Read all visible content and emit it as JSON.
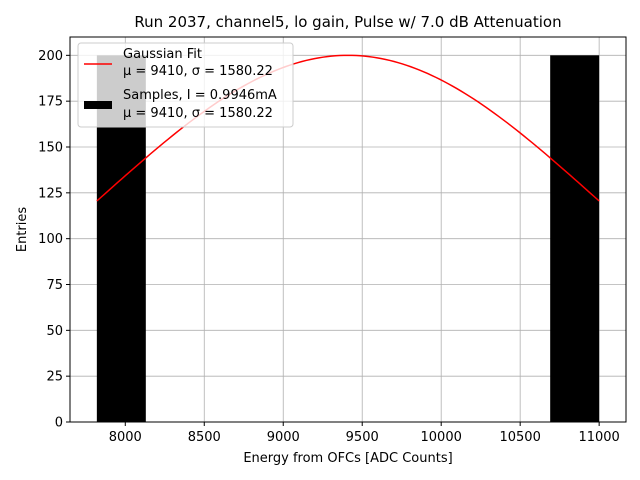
{
  "chart_data": {
    "type": "bar",
    "title": "Run 2037, channel5, lo gain, Pulse w/ 7.0 dB Attenuation",
    "xlabel": "Energy from OFCs [ADC Counts]",
    "ylabel": "Entries",
    "xlim": [
      7650,
      11170
    ],
    "ylim": [
      0,
      210
    ],
    "xticks": [
      8000,
      8500,
      9000,
      9500,
      10000,
      10500,
      11000
    ],
    "yticks": [
      0,
      25,
      50,
      75,
      100,
      125,
      150,
      175,
      200
    ],
    "grid": true,
    "series": [
      {
        "name": "Samples",
        "type": "histogram",
        "color": "#000000",
        "bins": [
          {
            "left": 7820,
            "right": 8130,
            "count": 200
          },
          {
            "left": 10690,
            "right": 11000,
            "count": 200
          }
        ]
      },
      {
        "name": "Gaussian Fit",
        "type": "line",
        "color": "#ff0000",
        "mu": 9410,
        "sigma": 1580.22,
        "amplitude": 200,
        "x_range": [
          7820,
          11000
        ]
      }
    ],
    "legend": {
      "position": "upper-left",
      "entries": [
        {
          "line1": "Gaussian Fit",
          "line2": "μ = 9410, σ = 1580.22",
          "swatch": "line",
          "color": "#ff0000"
        },
        {
          "line1": "Samples, I = 0.9946mA",
          "line2": "μ = 9410, σ = 1580.22",
          "swatch": "patch",
          "color": "#000000"
        }
      ]
    }
  }
}
